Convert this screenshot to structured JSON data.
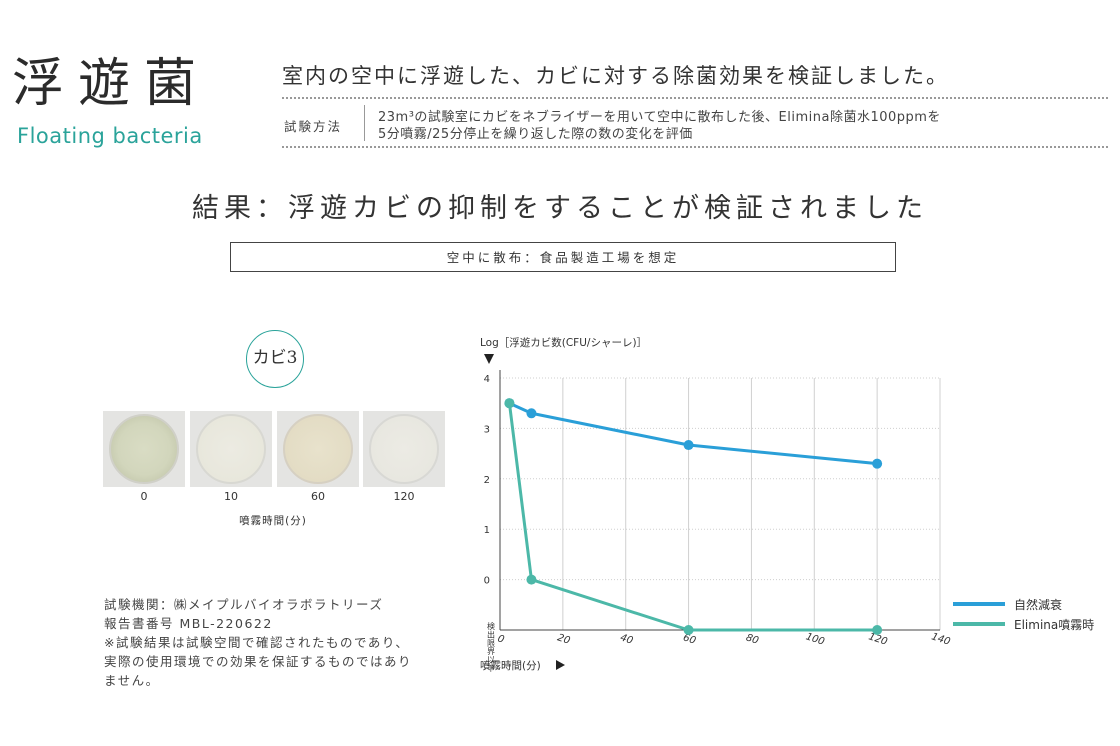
{
  "header": {
    "title_jp": "浮遊菌",
    "title_en": "Floating bacteria",
    "headline": "室内の空中に浮遊した、カビに対する除菌効果を検証しました。",
    "method_label": "試験方法",
    "method_line1": "23m³の試験室にカビをネブライザーを用いて空中に散布した後、Elimina除菌水100ppmを",
    "method_line2": "5分噴霧/25分停止を繰り返した際の数の変化を評価"
  },
  "result": "結果：浮遊カビの抑制をすることが検証されました",
  "condition": "空中に散布：食品製造工場を想定",
  "samples": {
    "badge": "カビ3",
    "plates": [
      {
        "label": "0",
        "density": "high"
      },
      {
        "label": "10",
        "density": "none"
      },
      {
        "label": "60",
        "density": "faint"
      },
      {
        "label": "120",
        "density": "none"
      }
    ],
    "time_label": "噴霧時間(分)"
  },
  "info": {
    "line1": "試験機関：㈱メイプルバイオラボラトリーズ",
    "line2": "報告書番号 MBL-220622",
    "line3": "※試験結果は試験空間で確認されたものであり、",
    "line4": "実際の使用環境での効果を保証するものではあり",
    "line5": "ません。"
  },
  "colors": {
    "natural": "#2a9fd8",
    "elimina": "#4cb8a8",
    "accent": "#2aa39a"
  },
  "chart_data": {
    "type": "line",
    "ylabel": "Log［浮遊カビ数(CFU/シャーレ)］",
    "xlabel": "噴霧時間(分)",
    "xlim": [
      0,
      140
    ],
    "ylim": [
      -1,
      4
    ],
    "x_ticks": [
      "0",
      "20",
      "40",
      "60",
      "80",
      "100",
      "120",
      "140"
    ],
    "y_ticks": [
      "4",
      "3",
      "2",
      "1",
      "0"
    ],
    "detection_limit_label": "検出限界以下",
    "grid": true,
    "legend_position": "right",
    "series": [
      {
        "name": "自然減衰",
        "color": "#2a9fd8",
        "points": [
          {
            "x": 3,
            "y": 3.5
          },
          {
            "x": 10,
            "y": 3.3
          },
          {
            "x": 60,
            "y": 2.67
          },
          {
            "x": 120,
            "y": 2.3
          }
        ]
      },
      {
        "name": "Elimina噴霧時",
        "color": "#4cb8a8",
        "points": [
          {
            "x": 3,
            "y": 3.5
          },
          {
            "x": 10,
            "y": 0
          },
          {
            "x": 60,
            "y": -1
          },
          {
            "x": 120,
            "y": -1
          }
        ]
      }
    ]
  }
}
